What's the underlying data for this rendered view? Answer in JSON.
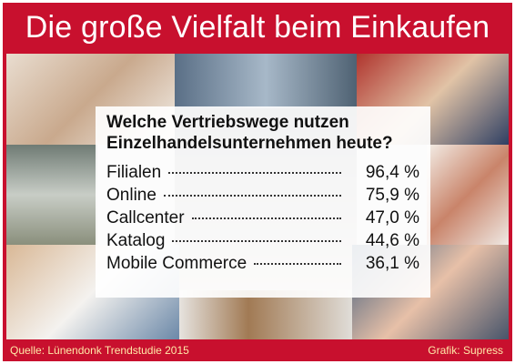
{
  "header": {
    "title": "Die große Vielfalt beim Einkaufen"
  },
  "panel": {
    "question": "Welche Vertriebswege nutzen Einzelhandelsunternehmen heute?",
    "rows": [
      {
        "label": "Filialen",
        "value": "96,4 %"
      },
      {
        "label": "Online",
        "value": "75,9 %"
      },
      {
        "label": "Callcenter",
        "value": "47,0 %"
      },
      {
        "label": "Katalog",
        "value": "44,6 %"
      },
      {
        "label": "Mobile Commerce",
        "value": "36,1 %"
      }
    ]
  },
  "footer": {
    "source": "Quelle: Lünendonk Trendstudie 2015",
    "credit": "Grafik: Supress"
  }
}
